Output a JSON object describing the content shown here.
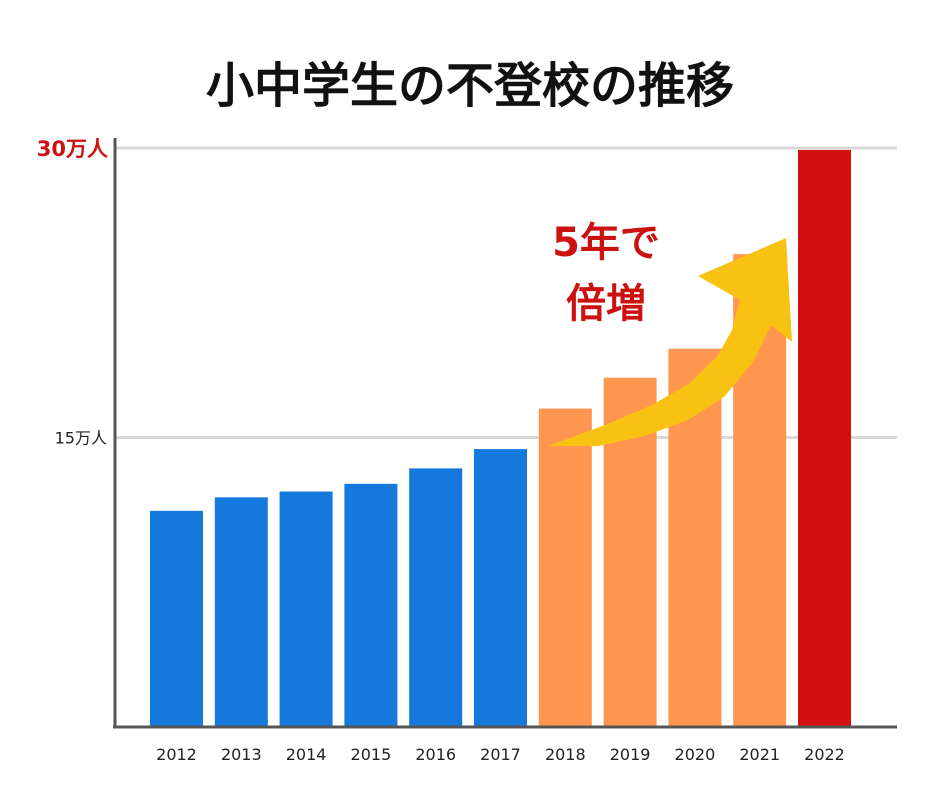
{
  "chart_data": {
    "type": "bar",
    "title": "小中学生の不登校の推移",
    "categories": [
      "2012",
      "2013",
      "2014",
      "2015",
      "2016",
      "2017",
      "2018",
      "2019",
      "2020",
      "2021",
      "2022"
    ],
    "values": [
      11.2,
      11.9,
      12.2,
      12.6,
      13.4,
      14.4,
      16.5,
      18.1,
      19.6,
      24.5,
      29.9
    ],
    "bar_groups": [
      "base",
      "base",
      "base",
      "base",
      "base",
      "base",
      "rise",
      "rise",
      "rise",
      "rise",
      "peak"
    ],
    "y_unit": "万人",
    "ylim": [
      0,
      30
    ],
    "yticks": [
      {
        "value": 15,
        "label": "15万人"
      },
      {
        "value": 30,
        "label": "30万人"
      }
    ],
    "xlabel": "",
    "ylabel": "",
    "grid": true,
    "annotation": {
      "line1": "5年で",
      "line2": "倍増"
    }
  },
  "colors": {
    "base": "#1478DC",
    "rise": "#FF9650",
    "peak": "#D40F0F",
    "accent": "#CC1111",
    "arrow": "#F8C213",
    "grid": "#D9D9D9",
    "axis": "#555555"
  }
}
